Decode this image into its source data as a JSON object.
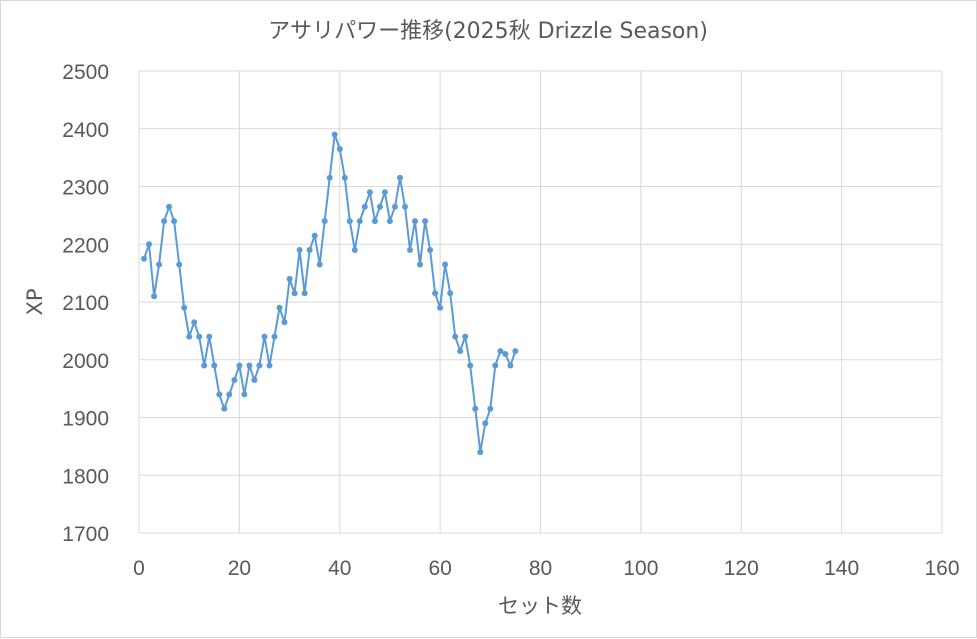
{
  "chart_data": {
    "type": "line",
    "title": "アサリパワー推移(2025秋 Drizzle Season)",
    "xlabel": "セット数",
    "ylabel": "XP",
    "xlim": [
      0,
      160
    ],
    "ylim": [
      1700,
      2500
    ],
    "x_ticks": [
      "0",
      "20",
      "40",
      "60",
      "80",
      "100",
      "120",
      "140",
      "160"
    ],
    "y_ticks": [
      "2500",
      "2400",
      "2300",
      "2200",
      "2100",
      "2000",
      "1900",
      "1800",
      "1700"
    ],
    "grid": true,
    "legend": "none",
    "colors": {
      "series": "#5b9bd5",
      "grid": "#d9d9d9",
      "text": "#595959"
    },
    "series": [
      {
        "x": [
          1,
          2,
          3,
          4,
          5,
          6,
          7,
          8,
          9,
          10,
          11,
          12,
          13,
          14,
          15,
          16,
          17,
          18,
          19,
          20,
          21,
          22,
          23,
          24,
          25,
          26,
          27,
          28,
          29,
          30,
          31,
          32,
          33,
          34,
          35,
          36,
          37,
          38,
          39,
          40,
          41,
          42,
          43,
          44,
          45,
          46,
          47,
          48,
          49,
          50,
          51,
          52,
          53,
          54,
          55,
          56,
          57,
          58,
          59,
          60,
          61,
          62,
          63,
          64,
          65,
          66,
          67,
          68,
          69,
          70,
          71,
          72,
          73,
          74,
          75
        ],
        "values": [
          2175,
          2200,
          2110,
          2165,
          2240,
          2265,
          2240,
          2165,
          2090,
          2040,
          2065,
          2040,
          1990,
          2040,
          1990,
          1940,
          1915,
          1940,
          1965,
          1990,
          1940,
          1990,
          1965,
          1990,
          2040,
          1990,
          2040,
          2090,
          2065,
          2140,
          2115,
          2190,
          2115,
          2190,
          2215,
          2165,
          2240,
          2315,
          2390,
          2365,
          2315,
          2240,
          2190,
          2240,
          2265,
          2290,
          2240,
          2265,
          2290,
          2240,
          2265,
          2315,
          2265,
          2190,
          2240,
          2165,
          2240,
          2190,
          2115,
          2090,
          2165,
          2115,
          2040,
          2015,
          2040,
          1990,
          1915,
          1840,
          1890,
          1915,
          1990,
          2015,
          2010,
          1990,
          2015
        ]
      }
    ]
  }
}
